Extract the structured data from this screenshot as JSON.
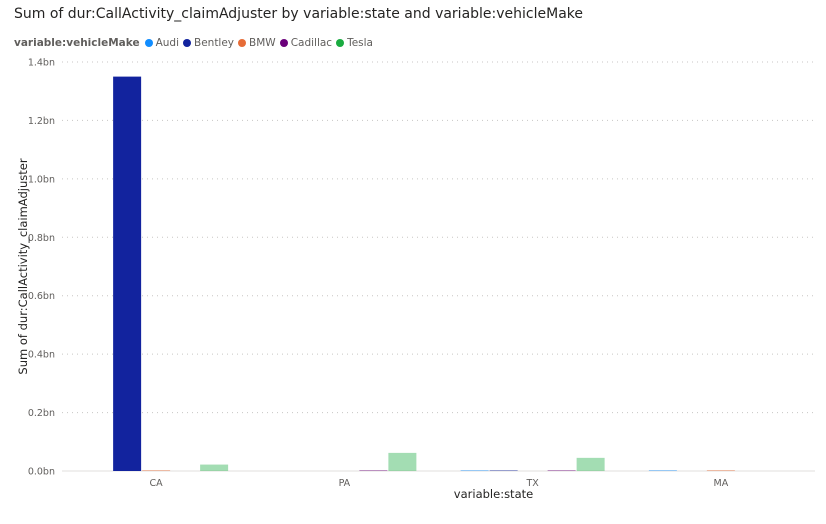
{
  "chart_data": {
    "type": "bar",
    "title": "Sum of dur:CallActivity_claimAdjuster by variable:state and variable:vehicleMake",
    "xlabel": "variable:state",
    "ylabel": "Sum of dur:CallActivity_claimAdjuster",
    "legend_title": "variable:vehicleMake",
    "legend_position": "top-left",
    "grid": true,
    "categories": [
      "CA",
      "PA",
      "TX",
      "MA"
    ],
    "ylim": [
      0,
      1.4
    ],
    "y_unit": "bn",
    "y_ticks": [
      "0.0bn",
      "0.2bn",
      "0.4bn",
      "0.6bn",
      "0.8bn",
      "1.0bn",
      "1.2bn",
      "1.4bn"
    ],
    "series": [
      {
        "name": "Audi",
        "color": "#118dff",
        "values": [
          0,
          0,
          0.002,
          0.002
        ]
      },
      {
        "name": "Bentley",
        "color": "#12239e",
        "values": [
          1.35,
          0,
          0.002,
          0
        ]
      },
      {
        "name": "BMW",
        "color": "#e66c37",
        "values": [
          0.002,
          0,
          0,
          0.002
        ]
      },
      {
        "name": "Cadillac",
        "color": "#6b007b",
        "values": [
          0,
          0.002,
          0.002,
          0
        ]
      },
      {
        "name": "Tesla",
        "color": "#1aab40",
        "values": [
          0.022,
          0.062,
          0.045,
          0
        ]
      }
    ]
  }
}
